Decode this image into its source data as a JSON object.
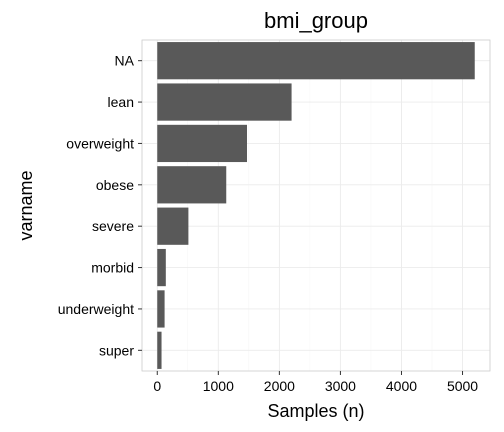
{
  "colors": {
    "bar": "#595959",
    "background": "#ffffff"
  },
  "chart_data": {
    "type": "bar",
    "orientation": "horizontal",
    "title": "bmi_group",
    "xlabel": "Samples (n)",
    "ylabel": "varname",
    "categories": [
      "NA",
      "lean",
      "overweight",
      "obese",
      "severe",
      "morbid",
      "underweight",
      "super"
    ],
    "values": [
      5200,
      2200,
      1470,
      1130,
      510,
      140,
      120,
      70
    ],
    "xlim": [
      -250,
      5450
    ],
    "xticks": [
      0,
      1000,
      2000,
      3000,
      4000,
      5000
    ],
    "xtick_labels": [
      "0",
      "1000",
      "2000",
      "3000",
      "4000",
      "5000"
    ],
    "grid": true,
    "legend": "none"
  }
}
